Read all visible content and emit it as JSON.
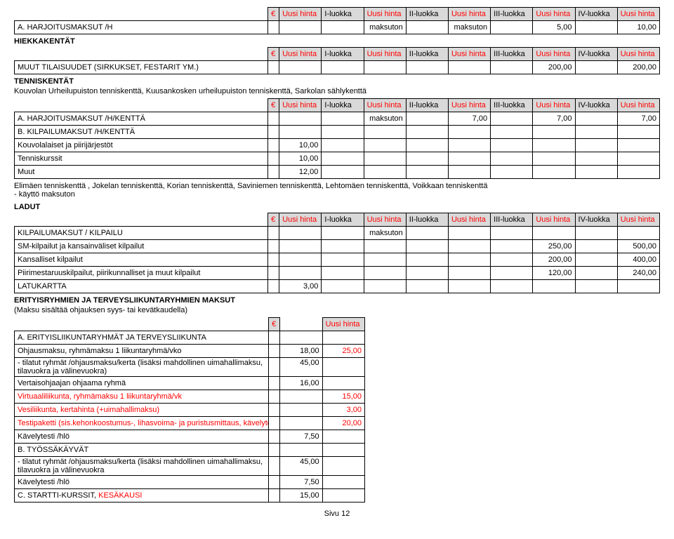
{
  "colors": {
    "header_bg": "#d9d9d9",
    "red": "#ff0000",
    "border": "#000000",
    "bg": "#ffffff"
  },
  "columns": {
    "euro": "€",
    "uh": "Uusi hinta",
    "c1": "I-luokka",
    "c2": "II-luokka",
    "c3": "III-luokka",
    "c4": "IV-luokka"
  },
  "table1_rows": [
    {
      "label": "A. HARJOITUSMAKSUT /H",
      "v0": "",
      "v1": "",
      "c1": "",
      "v2": "maksuton",
      "c2": "",
      "v3": "maksuton",
      "c3": "",
      "v4": "5,00",
      "c4": "",
      "v5": "10,00"
    }
  ],
  "section_hiekka": "HIEKKAKENTÄT",
  "table2_rows": [
    {
      "label": "MUUT TILAISUUDET (SIRKUKSET, FESTARIT YM.)",
      "v0": "",
      "v1": "",
      "c1": "",
      "v2": "",
      "c2": "",
      "v3": "",
      "c3": "",
      "v4": "200,00",
      "c4": "",
      "v5": "200,00"
    }
  ],
  "section_tennis": "TENNISKENTÄT",
  "tennis_sub": "Kouvolan Urheilupuiston tenniskenttä, Kuusankosken urheilupuiston tenniskenttä, Sarkolan sählykenttä",
  "table3_rows": [
    {
      "label": "A. HARJOITUSMAKSUT /H/KENTTÄ",
      "v0": "",
      "v1": "",
      "c1": "",
      "v2": "maksuton",
      "c2": "",
      "v3": "7,00",
      "c3": "",
      "v4": "7,00",
      "c4": "",
      "v5": "7,00"
    },
    {
      "label": "B. KILPAILUMAKSUT /H/KENTTÄ",
      "v0": "",
      "v1": "",
      "c1": "",
      "v2": "",
      "c2": "",
      "v3": "",
      "c3": "",
      "v4": "",
      "c4": "",
      "v5": ""
    },
    {
      "label": "Kouvolalaiset ja piirijärjestöt",
      "v0": "",
      "v1": "10,00",
      "c1": "",
      "v2": "",
      "c2": "",
      "v3": "",
      "c3": "",
      "v4": "",
      "c4": "",
      "v5": ""
    },
    {
      "label": "Tenniskurssit",
      "v0": "",
      "v1": "10,00",
      "c1": "",
      "v2": "",
      "c2": "",
      "v3": "",
      "c3": "",
      "v4": "",
      "c4": "",
      "v5": ""
    },
    {
      "label": "Muut",
      "v0": "",
      "v1": "12,00",
      "c1": "",
      "v2": "",
      "c2": "",
      "v3": "",
      "c3": "",
      "v4": "",
      "c4": "",
      "v5": ""
    }
  ],
  "tennis_note1": "Elimäen tenniskenttä , Jokelan tenniskenttä, Korian tenniskenttä,  Saviniemen tenniskenttä, Lehtomäen tenniskenttä, Voikkaan tenniskenttä",
  "tennis_note2": "- käyttö maksuton",
  "section_ladut": "LADUT",
  "table4_rows": [
    {
      "label": "KILPAILUMAKSUT / KILPAILU",
      "v0": "",
      "v1": "",
      "c1": "",
      "v2": "maksuton",
      "c2": "",
      "v3": "",
      "c3": "",
      "v4": "",
      "c4": "",
      "v5": ""
    },
    {
      "label": "SM-kilpailut ja kansainväliset kilpailut",
      "v0": "",
      "v1": "",
      "c1": "",
      "v2": "",
      "c2": "",
      "v3": "",
      "c3": "",
      "v4": "250,00",
      "c4": "",
      "v5": "500,00"
    },
    {
      "label": "Kansalliset kilpailut",
      "v0": "",
      "v1": "",
      "c1": "",
      "v2": "",
      "c2": "",
      "v3": "",
      "c3": "",
      "v4": "200,00",
      "c4": "",
      "v5": "400,00"
    },
    {
      "label": "Piirimestaruuskilpailut, piirikunnalliset ja muut kilpailut",
      "v0": "",
      "v1": "",
      "c1": "",
      "v2": "",
      "c2": "",
      "v3": "",
      "c3": "",
      "v4": "120,00",
      "c4": "",
      "v5": "240,00"
    },
    {
      "label": "LATUKARTTA",
      "v0": "",
      "v1": "3,00",
      "c1": "",
      "v2": "",
      "c2": "",
      "v3": "",
      "c3": "",
      "v4": "",
      "c4": "",
      "v5": ""
    }
  ],
  "section_erityis": "ERITYISRYHMIEN JA TERVEYSLIIKUNTARYHMIEN MAKSUT",
  "erityis_sub": "(Maksu sisältää ohjauksen syys- tai kevätkaudella)",
  "table5_header": {
    "euro": "€",
    "uh": "Uusi hinta"
  },
  "table5_rows": [
    {
      "label": "A. ERITYISLIIKUNTARYHMÄT JA TERVEYSLIIKUNTA",
      "v0": "",
      "v1": "",
      "red": false,
      "wrap": false
    },
    {
      "label": "Ohjausmaksu, ryhmämaksu 1 liikuntaryhmä/vko",
      "v0": "18,00",
      "v1": "25,00",
      "red": true,
      "wrap": false
    },
    {
      "label": "- tilatut ryhmät /ohjausmaksu/kerta  (lisäksi mahdollinen uimahallimaksu, tilavuokra ja välinevuokra)",
      "v0": "45,00",
      "v1": "",
      "red": false,
      "wrap": true
    },
    {
      "label": "Vertaisohjaajan ohjaama ryhmä",
      "v0": "16,00",
      "v1": "",
      "red": false,
      "wrap": false
    },
    {
      "label": "Virtuaaliliikunta, ryhmämaksu 1 liikuntaryhmä/vk",
      "v0": "",
      "v1": "15,00",
      "red": true,
      "wrap": false
    },
    {
      "label": "Vesiliikunta, kertahinta (+uimahallimaksu)",
      "v0": "",
      "v1": "3,00",
      "red": true,
      "wrap": false
    },
    {
      "label": "Testipaketti (sis.kehonkoostumus-, lihasvoima- ja puristusmittaus, kävelytesti)",
      "v0": "",
      "v1": "20,00",
      "red": true,
      "wrap": false
    },
    {
      "label": "Kävelytesti /hlö",
      "v0": "7,50",
      "v1": "",
      "red": false,
      "wrap": false
    },
    {
      "label": "B. TYÖSSÄKÄYVÄT",
      "v0": "",
      "v1": "",
      "red": false,
      "wrap": false
    },
    {
      "label": "- tilatut ryhmät /ohjausmaksu/kerta  (lisäksi mahdollinen uimahallimaksu, tilavuokra ja välinevuokra",
      "v0": "45,00",
      "v1": "",
      "red": false,
      "wrap": true
    },
    {
      "label": "Kävelytesti /hlö",
      "v0": "7,50",
      "v1": "",
      "red": false,
      "wrap": false
    },
    {
      "label": "C. STARTTI-KURSSIT, ",
      "label2": "KESÄKAUSI",
      "v0": "15,00",
      "v1": "",
      "red": false,
      "wrap": false,
      "split_red": true
    }
  ],
  "footer": "Sivu 12"
}
